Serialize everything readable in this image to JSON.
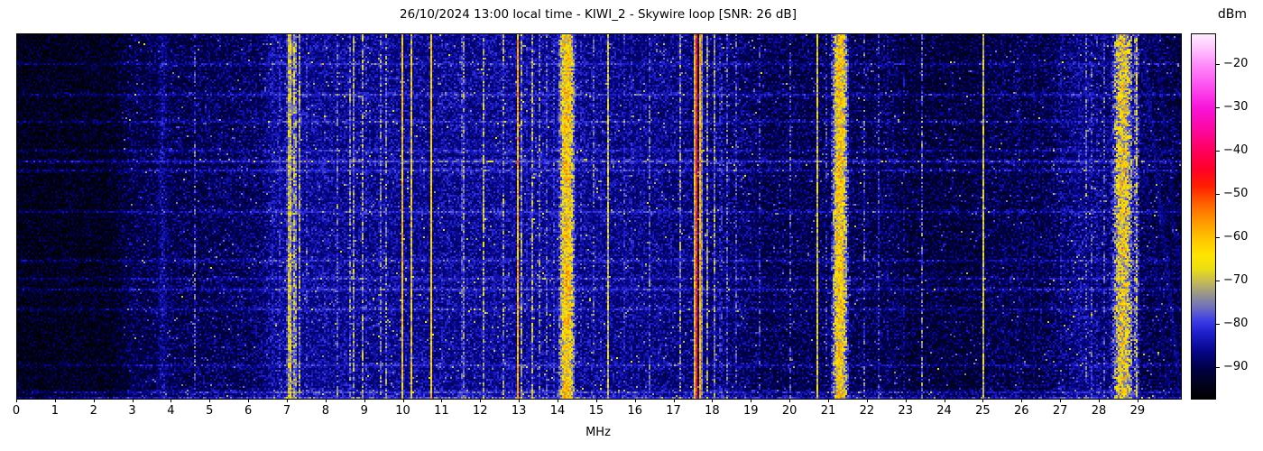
{
  "chart_data": {
    "type": "heatmap",
    "subtype": "radio-spectrogram-waterfall",
    "title": "26/10/2024 13:00 local time - KIWI_2 - Skywire loop [SNR: 26 dB]",
    "date": "26/10/2024",
    "time_local": "13:00",
    "receiver": "KIWI_2",
    "antenna": "Skywire loop",
    "snr_db": 26,
    "x_axis": {
      "label": "MHz",
      "range_mhz": [
        0,
        30.1
      ],
      "ticks": [
        0,
        1,
        2,
        3,
        4,
        5,
        6,
        7,
        8,
        9,
        10,
        11,
        12,
        13,
        14,
        15,
        16,
        17,
        18,
        19,
        20,
        21,
        22,
        23,
        24,
        25,
        26,
        27,
        28,
        29
      ]
    },
    "colorbar": {
      "label": "dBm",
      "range_dbm": [
        -97,
        -13
      ],
      "ticks": [
        -20,
        -30,
        -40,
        -50,
        -60,
        -70,
        -80,
        -90
      ],
      "stops_dbm_rgb": [
        [
          -97,
          0,
          0,
          0
        ],
        [
          -93.5,
          2,
          2,
          30
        ],
        [
          -90,
          0,
          0,
          70
        ],
        [
          -86,
          6,
          6,
          140
        ],
        [
          -82,
          30,
          30,
          200
        ],
        [
          -79,
          60,
          60,
          230
        ],
        [
          -76,
          110,
          110,
          190
        ],
        [
          -73,
          150,
          148,
          140
        ],
        [
          -70,
          195,
          186,
          86
        ],
        [
          -67,
          235,
          222,
          20
        ],
        [
          -64,
          255,
          228,
          0
        ],
        [
          -60,
          255,
          196,
          0
        ],
        [
          -56,
          255,
          150,
          0
        ],
        [
          -52,
          255,
          96,
          0
        ],
        [
          -48,
          255,
          30,
          0
        ],
        [
          -44,
          255,
          0,
          40
        ],
        [
          -40,
          255,
          0,
          90
        ],
        [
          -35,
          252,
          8,
          160
        ],
        [
          -30,
          248,
          20,
          216
        ],
        [
          -25,
          252,
          80,
          240
        ],
        [
          -20,
          255,
          140,
          250
        ],
        [
          -16,
          255,
          200,
          253
        ],
        [
          -13,
          255,
          235,
          255
        ]
      ]
    },
    "noise_floor_dbm_breakpoints": [
      [
        0,
        -96.5
      ],
      [
        2.5,
        -96
      ],
      [
        3.0,
        -92.5
      ],
      [
        4.5,
        -92
      ],
      [
        6.3,
        -91
      ],
      [
        6.6,
        -88
      ],
      [
        9.0,
        -88.5
      ],
      [
        13.4,
        -88
      ],
      [
        16.5,
        -89
      ],
      [
        18.8,
        -90.5
      ],
      [
        19.3,
        -92
      ],
      [
        22.7,
        -92
      ],
      [
        23.0,
        -93.5
      ],
      [
        24.8,
        -93.5
      ],
      [
        25.2,
        -92.5
      ],
      [
        26.5,
        -92.5
      ],
      [
        27.2,
        -90
      ],
      [
        27.5,
        -88.5
      ],
      [
        29.05,
        -92
      ],
      [
        30.1,
        -93
      ]
    ],
    "band_columns": [
      "freq_mhz",
      "half_width_mhz",
      "peak_dbm",
      "flicker"
    ],
    "signal_bands": [
      [
        3.78,
        0.45,
        -83,
        0.45
      ],
      [
        3.75,
        0.2,
        -79,
        0.5
      ],
      [
        4.29,
        0.03,
        -82,
        0.5
      ],
      [
        4.59,
        0.025,
        -70,
        0.7
      ],
      [
        5.08,
        0.03,
        -83,
        0.55
      ],
      [
        5.5,
        0.03,
        -83,
        0.6
      ],
      [
        5.85,
        0.03,
        -82,
        0.6
      ],
      [
        6.2,
        0.035,
        -79,
        0.5
      ],
      [
        6.45,
        0.03,
        -80,
        0.55
      ],
      [
        6.62,
        0.025,
        -69,
        0.65
      ],
      [
        6.8,
        0.03,
        -74,
        0.55
      ],
      [
        7.05,
        0.09,
        -60,
        0.45
      ],
      [
        7.18,
        0.07,
        -63,
        0.5
      ],
      [
        7.3,
        0.04,
        -66,
        0.5
      ],
      [
        7.5,
        0.03,
        -72,
        0.6
      ],
      [
        7.75,
        0.35,
        -84,
        0.35
      ],
      [
        7.95,
        0.03,
        -77,
        0.5
      ],
      [
        8.12,
        0.03,
        -71,
        0.6
      ],
      [
        8.3,
        0.03,
        -65,
        0.55
      ],
      [
        8.45,
        0.025,
        -66,
        0.6
      ],
      [
        8.6,
        0.025,
        -65,
        0.55
      ],
      [
        8.72,
        0.02,
        -52,
        0.5
      ],
      [
        8.95,
        0.025,
        -60,
        0.6
      ],
      [
        9.05,
        0.02,
        -54,
        0.55
      ],
      [
        9.2,
        0.03,
        -79,
        0.5
      ],
      [
        9.4,
        0.025,
        -68,
        0.6
      ],
      [
        9.55,
        0.025,
        -66,
        0.6
      ],
      [
        9.96,
        0.022,
        -54,
        0.55
      ],
      [
        10.2,
        0.028,
        -58,
        0.5
      ],
      [
        10.45,
        0.03,
        -80,
        0.5
      ],
      [
        10.7,
        0.018,
        -50,
        0.35
      ],
      [
        10.97,
        0.03,
        -70,
        0.65
      ],
      [
        11.2,
        0.05,
        -79,
        0.45
      ],
      [
        11.53,
        0.04,
        -63,
        0.5
      ],
      [
        11.8,
        0.03,
        -79,
        0.5
      ],
      [
        12.07,
        0.03,
        -64,
        0.55
      ],
      [
        12.35,
        0.04,
        -80,
        0.5
      ],
      [
        12.58,
        0.025,
        -67,
        0.6
      ],
      [
        12.8,
        0.03,
        -78,
        0.55
      ],
      [
        12.95,
        0.02,
        -52,
        0.5
      ],
      [
        13.05,
        0.025,
        -64,
        0.55
      ],
      [
        13.17,
        0.025,
        -71,
        0.6
      ],
      [
        13.32,
        0.03,
        -65,
        0.55
      ],
      [
        13.5,
        0.03,
        -67,
        0.6
      ],
      [
        13.7,
        0.03,
        -72,
        0.55
      ],
      [
        13.88,
        0.03,
        -75,
        0.5
      ],
      [
        14.22,
        0.22,
        -53,
        0.55
      ],
      [
        14.6,
        0.025,
        -67,
        0.65
      ],
      [
        14.9,
        0.025,
        -68,
        0.65
      ],
      [
        15.1,
        0.03,
        -79,
        0.5
      ],
      [
        15.3,
        0.022,
        -50,
        0.4
      ],
      [
        15.55,
        0.03,
        -80,
        0.5
      ],
      [
        15.72,
        0.025,
        -66,
        0.6
      ],
      [
        15.87,
        0.025,
        -65,
        0.6
      ],
      [
        16.1,
        0.04,
        -79,
        0.5
      ],
      [
        16.37,
        0.03,
        -67,
        0.6
      ],
      [
        16.6,
        0.04,
        -80,
        0.5
      ],
      [
        16.85,
        0.03,
        -79,
        0.55
      ],
      [
        17.14,
        0.03,
        -65,
        0.55
      ],
      [
        17.35,
        0.03,
        -78,
        0.5
      ],
      [
        17.56,
        0.035,
        -42,
        0.25
      ],
      [
        17.68,
        0.028,
        -45,
        0.3
      ],
      [
        17.84,
        0.028,
        -64,
        0.55
      ],
      [
        18.05,
        0.03,
        -63,
        0.5
      ],
      [
        18.2,
        0.025,
        -57,
        0.65
      ],
      [
        18.35,
        0.028,
        -66,
        0.6
      ],
      [
        18.6,
        0.03,
        -73,
        0.6
      ],
      [
        18.85,
        0.03,
        -80,
        0.55
      ],
      [
        19.2,
        0.025,
        -74,
        0.7
      ],
      [
        19.55,
        0.03,
        -82,
        0.5
      ],
      [
        20.0,
        0.022,
        -72,
        0.75
      ],
      [
        20.35,
        0.03,
        -81,
        0.55
      ],
      [
        20.7,
        0.035,
        -62,
        0.4
      ],
      [
        20.95,
        0.02,
        -52,
        0.8
      ],
      [
        21.28,
        0.22,
        -54,
        0.55
      ],
      [
        21.7,
        0.03,
        -80,
        0.5
      ],
      [
        21.9,
        0.03,
        -68,
        0.85
      ],
      [
        22.3,
        0.028,
        -66,
        0.6
      ],
      [
        22.5,
        0.025,
        -72,
        0.6
      ],
      [
        22.95,
        0.028,
        -76,
        0.55
      ],
      [
        23.4,
        0.025,
        -69,
        0.7
      ],
      [
        23.8,
        0.03,
        -85,
        0.5
      ],
      [
        24.4,
        0.03,
        -84,
        0.5
      ],
      [
        25.0,
        0.03,
        -62,
        0.35
      ],
      [
        25.55,
        0.03,
        -85,
        0.5
      ],
      [
        25.9,
        0.028,
        -67,
        0.7
      ],
      [
        26.3,
        0.03,
        -83,
        0.5
      ],
      [
        26.7,
        0.03,
        -80,
        0.55
      ],
      [
        27.0,
        0.03,
        -79,
        0.55
      ],
      [
        27.3,
        0.028,
        -72,
        0.6
      ],
      [
        27.45,
        0.04,
        -78,
        0.5
      ],
      [
        27.65,
        0.025,
        -71,
        0.65
      ],
      [
        27.8,
        0.025,
        -70,
        0.65
      ],
      [
        27.95,
        0.028,
        -68,
        0.6
      ],
      [
        28.1,
        0.028,
        -66,
        0.6
      ],
      [
        28.6,
        0.3,
        -56,
        0.6
      ],
      [
        28.95,
        0.07,
        -62,
        0.6
      ],
      [
        29.15,
        0.03,
        -83,
        0.5
      ]
    ],
    "time_streak_columns": [
      "row_fraction",
      "boost_db"
    ],
    "time_streaks": [
      [
        0.08,
        4
      ],
      [
        0.165,
        5
      ],
      [
        0.24,
        4
      ],
      [
        0.32,
        4
      ],
      [
        0.35,
        7
      ],
      [
        0.375,
        5
      ],
      [
        0.49,
        5
      ],
      [
        0.62,
        4
      ],
      [
        0.67,
        4
      ],
      [
        0.7,
        5
      ],
      [
        0.755,
        4
      ],
      [
        0.91,
        4
      ],
      [
        0.985,
        6
      ],
      [
        0.999,
        7
      ]
    ],
    "diagonal_traces": [
      {
        "f_top_mhz": 28.8,
        "slope_mhz_per_height": 1.0,
        "dbm": -86
      },
      {
        "f_top_mhz": 29.1,
        "slope_mhz_per_height": 1.0,
        "dbm": -84
      },
      {
        "f_top_mhz": 29.45,
        "slope_mhz_per_height": 0.95,
        "dbm": -86
      }
    ],
    "render": {
      "seed": 7,
      "cols": 645,
      "rows": 202
    }
  }
}
